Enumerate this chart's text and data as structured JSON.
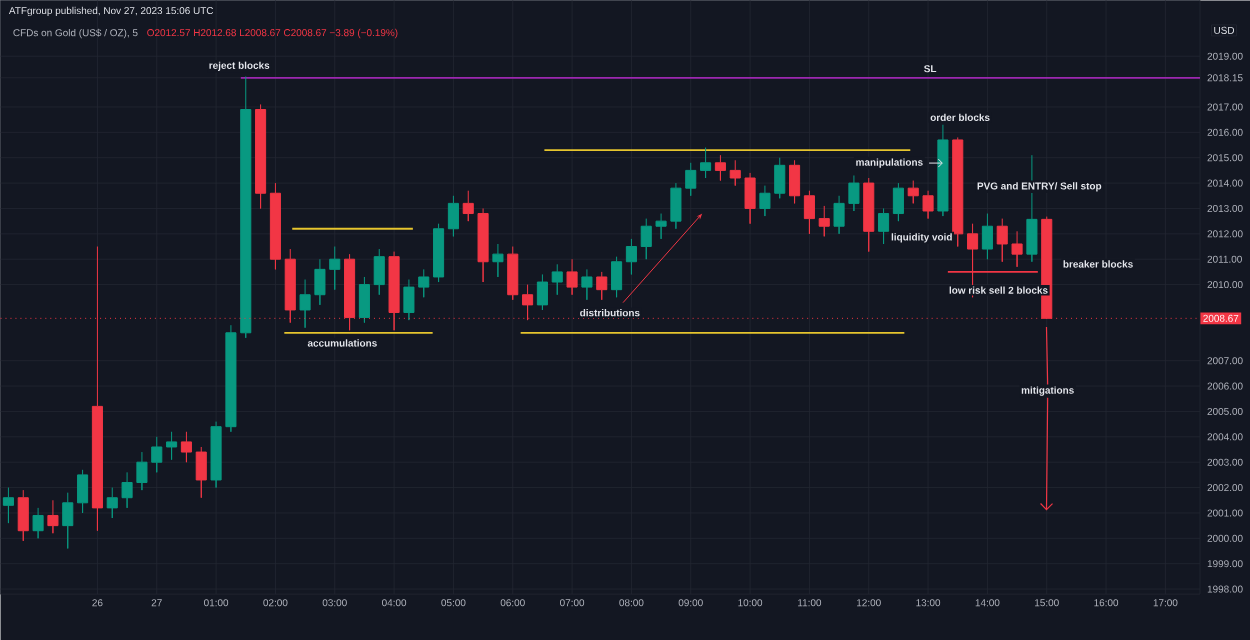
{
  "chart_data": {
    "type": "candlestick",
    "title": "ATFgroup published, Nov 27, 2023 15:06 UTC",
    "subtitle": "CFDs on Gold (US$ / OZ), 5",
    "ylabel": "USD",
    "annotations": [
      "O2012.57 H2012.68 L2008.67 C2008.67 −3.89 (−0.19%)",
      "reject blocks",
      "SL",
      "order blocks",
      "manipulations",
      "PVG and ENTRY/ Sell stop",
      "liquidity void",
      "low risk sell 2 blocks",
      "breaker blocks",
      "mitigations",
      "accumulations",
      "distributions"
    ],
    "x": [
      "2023-11-26T21:30",
      "2023-11-26T21:45",
      "2023-11-26T22:00",
      "2023-11-26T22:15",
      "2023-11-26T22:30",
      "2023-11-26T22:45",
      "2023-11-26T23:00",
      "2023-11-26T23:15",
      "2023-11-26T23:30",
      "2023-11-26T23:45",
      "2023-11-27T00:00",
      "2023-11-27T00:15",
      "2023-11-27T00:30",
      "2023-11-27T00:45",
      "2023-11-27T01:00",
      "2023-11-27T01:15",
      "2023-11-27T01:30",
      "2023-11-27T01:45",
      "2023-11-27T02:00",
      "2023-11-27T02:15",
      "2023-11-27T02:30",
      "2023-11-27T02:45",
      "2023-11-27T03:00",
      "2023-11-27T03:15",
      "2023-11-27T03:30",
      "2023-11-27T03:45",
      "2023-11-27T04:00",
      "2023-11-27T04:15",
      "2023-11-27T04:30",
      "2023-11-27T04:45",
      "2023-11-27T05:00",
      "2023-11-27T05:15",
      "2023-11-27T05:30",
      "2023-11-27T05:45",
      "2023-11-27T06:00",
      "2023-11-27T06:15",
      "2023-11-27T06:30",
      "2023-11-27T06:45",
      "2023-11-27T07:00",
      "2023-11-27T07:15",
      "2023-11-27T07:30",
      "2023-11-27T07:45",
      "2023-11-27T08:00",
      "2023-11-27T08:15",
      "2023-11-27T08:30",
      "2023-11-27T08:45",
      "2023-11-27T09:00",
      "2023-11-27T09:15",
      "2023-11-27T09:30",
      "2023-11-27T09:45",
      "2023-11-27T10:00",
      "2023-11-27T10:15",
      "2023-11-27T10:30",
      "2023-11-27T10:45",
      "2023-11-27T11:00",
      "2023-11-27T11:15",
      "2023-11-27T11:30",
      "2023-11-27T11:45",
      "2023-11-27T12:00",
      "2023-11-27T12:15",
      "2023-11-27T12:30",
      "2023-11-27T12:45",
      "2023-11-27T13:00",
      "2023-11-27T13:15",
      "2023-11-27T13:30",
      "2023-11-27T13:45",
      "2023-11-27T14:00",
      "2023-11-27T14:15",
      "2023-11-27T14:30",
      "2023-11-27T14:45",
      "2023-11-27T15:00"
    ],
    "ohlc": [
      [
        2001.3,
        2002.0,
        2000.6,
        2001.6
      ],
      [
        2001.6,
        2001.9,
        1999.9,
        2000.3
      ],
      [
        2000.3,
        2001.2,
        2000.0,
        2000.9
      ],
      [
        2000.9,
        2001.5,
        2000.2,
        2000.5
      ],
      [
        2000.5,
        2001.8,
        1999.6,
        2001.4
      ],
      [
        2001.4,
        2002.7,
        2001.0,
        2002.5
      ],
      [
        2005.2,
        2011.5,
        2000.3,
        2001.2
      ],
      [
        2001.2,
        2002.0,
        2000.8,
        2001.6
      ],
      [
        2001.6,
        2002.6,
        2001.2,
        2002.2
      ],
      [
        2002.2,
        2003.4,
        2001.9,
        2003.0
      ],
      [
        2003.0,
        2004.0,
        2002.6,
        2003.6
      ],
      [
        2003.6,
        2004.2,
        2003.1,
        2003.8
      ],
      [
        2003.8,
        2004.2,
        2003.0,
        2003.4
      ],
      [
        2003.4,
        2003.6,
        2001.6,
        2002.3
      ],
      [
        2002.3,
        2004.6,
        2002.0,
        2004.4
      ],
      [
        2004.4,
        2008.4,
        2004.2,
        2008.1
      ],
      [
        2008.1,
        2018.2,
        2007.9,
        2016.9
      ],
      [
        2016.9,
        2017.1,
        2013.0,
        2013.6
      ],
      [
        2013.6,
        2014.0,
        2010.6,
        2011.0
      ],
      [
        2011.0,
        2011.4,
        2008.5,
        2009.0
      ],
      [
        2009.0,
        2010.2,
        2008.3,
        2009.6
      ],
      [
        2009.6,
        2011.0,
        2009.2,
        2010.6
      ],
      [
        2010.6,
        2011.5,
        2009.8,
        2011.0
      ],
      [
        2011.0,
        2011.2,
        2008.2,
        2008.7
      ],
      [
        2008.7,
        2010.3,
        2008.5,
        2010.0
      ],
      [
        2010.0,
        2011.4,
        2009.6,
        2011.1
      ],
      [
        2011.1,
        2011.3,
        2008.2,
        2008.9
      ],
      [
        2008.9,
        2010.2,
        2008.6,
        2009.9
      ],
      [
        2009.9,
        2010.6,
        2009.5,
        2010.3
      ],
      [
        2010.3,
        2012.4,
        2010.1,
        2012.2
      ],
      [
        2012.2,
        2013.5,
        2011.9,
        2013.2
      ],
      [
        2013.2,
        2013.7,
        2012.5,
        2012.8
      ],
      [
        2012.8,
        2013.0,
        2010.1,
        2010.9
      ],
      [
        2010.9,
        2011.6,
        2010.3,
        2011.2
      ],
      [
        2011.2,
        2011.5,
        2009.4,
        2009.6
      ],
      [
        2009.6,
        2010.0,
        2008.6,
        2009.2
      ],
      [
        2009.2,
        2010.4,
        2009.0,
        2010.1
      ],
      [
        2010.1,
        2010.8,
        2009.6,
        2010.5
      ],
      [
        2010.5,
        2011.0,
        2009.6,
        2009.9
      ],
      [
        2009.9,
        2010.6,
        2009.4,
        2010.3
      ],
      [
        2010.3,
        2010.5,
        2009.4,
        2009.8
      ],
      [
        2009.8,
        2011.1,
        2009.5,
        2010.9
      ],
      [
        2010.9,
        2011.8,
        2010.4,
        2011.5
      ],
      [
        2011.5,
        2012.6,
        2011.0,
        2012.3
      ],
      [
        2012.3,
        2012.8,
        2011.8,
        2012.5
      ],
      [
        2012.5,
        2014.0,
        2012.2,
        2013.8
      ],
      [
        2013.8,
        2014.8,
        2013.5,
        2014.5
      ],
      [
        2014.5,
        2015.4,
        2014.2,
        2014.8
      ],
      [
        2014.8,
        2015.1,
        2014.1,
        2014.5
      ],
      [
        2014.5,
        2014.9,
        2013.9,
        2014.2
      ],
      [
        2014.2,
        2014.4,
        2012.4,
        2013.0
      ],
      [
        2013.0,
        2013.9,
        2012.7,
        2013.6
      ],
      [
        2013.6,
        2015.0,
        2013.4,
        2014.7
      ],
      [
        2014.7,
        2014.9,
        2013.2,
        2013.5
      ],
      [
        2013.5,
        2013.7,
        2012.0,
        2012.6
      ],
      [
        2012.6,
        2013.1,
        2011.9,
        2012.3
      ],
      [
        2012.3,
        2013.5,
        2012.0,
        2013.2
      ],
      [
        2013.2,
        2014.3,
        2012.9,
        2014.0
      ],
      [
        2014.0,
        2014.2,
        2011.3,
        2012.1
      ],
      [
        2012.1,
        2013.0,
        2011.6,
        2012.8
      ],
      [
        2012.8,
        2014.0,
        2012.5,
        2013.8
      ],
      [
        2013.8,
        2014.1,
        2013.2,
        2013.5
      ],
      [
        2013.5,
        2013.7,
        2012.6,
        2012.9
      ],
      [
        2012.9,
        2016.3,
        2012.7,
        2015.7
      ],
      [
        2015.7,
        2015.8,
        2011.5,
        2012.0
      ],
      [
        2012.0,
        2012.4,
        2009.5,
        2011.4
      ],
      [
        2011.4,
        2012.8,
        2011.0,
        2012.3
      ],
      [
        2012.3,
        2012.6,
        2010.9,
        2011.6
      ],
      [
        2011.6,
        2012.1,
        2010.7,
        2011.2
      ],
      [
        2011.2,
        2015.1,
        2010.9,
        2012.57
      ],
      [
        2012.57,
        2012.68,
        2008.67,
        2008.67
      ]
    ],
    "colors": [
      "#089981",
      "#f23645",
      "#089981",
      "#f23645",
      "#089981",
      "#089981",
      "#f23645",
      "#089981",
      "#089981",
      "#089981",
      "#089981",
      "#089981",
      "#f23645",
      "#f23645",
      "#089981",
      "#089981",
      "#089981",
      "#f23645",
      "#f23645",
      "#f23645",
      "#089981",
      "#089981",
      "#089981",
      "#f23645",
      "#089981",
      "#089981",
      "#f23645",
      "#089981",
      "#089981",
      "#089981",
      "#089981",
      "#f23645",
      "#f23645",
      "#089981",
      "#f23645",
      "#f23645",
      "#089981",
      "#089981",
      "#f23645",
      "#089981",
      "#f23645",
      "#089981",
      "#089981",
      "#089981",
      "#089981",
      "#089981",
      "#089981",
      "#089981",
      "#f23645",
      "#f23645",
      "#f23645",
      "#089981",
      "#089981",
      "#f23645",
      "#f23645",
      "#f23645",
      "#089981",
      "#089981",
      "#f23645",
      "#089981",
      "#089981",
      "#f23645",
      "#f23645",
      "#089981",
      "#f23645",
      "#f23645",
      "#089981",
      "#f23645",
      "#f23645",
      "#089981",
      "#f23645"
    ],
    "series": [
      {
        "type": "line",
        "x": [
          "2023-11-27T02:17",
          "2023-11-27T04:19"
        ],
        "values": [
          2012.2,
          2012.2
        ],
        "color": "#e6c52e"
      },
      {
        "type": "line",
        "x": [
          "2023-11-27T02:09",
          "2023-11-27T04:39"
        ],
        "values": [
          2008.1,
          2008.1
        ],
        "color": "#e6c52e"
      },
      {
        "type": "line",
        "x": [
          "2023-11-27T06:32",
          "2023-11-27T12:42"
        ],
        "values": [
          2015.3,
          2015.3
        ],
        "color": "#e6c52e"
      },
      {
        "type": "line",
        "x": [
          "2023-11-27T06:08",
          "2023-11-27T12:36"
        ],
        "values": [
          2008.1,
          2008.1
        ],
        "color": "#e6c52e"
      },
      {
        "type": "line",
        "x": [
          "2023-11-27T01:25",
          "2023-11-27T17:35"
        ],
        "values": [
          2018.15,
          2018.15
        ],
        "color": "#9c27b0"
      },
      {
        "type": "line",
        "x": [
          "2023-11-27T13:20",
          "2023-11-27T14:51"
        ],
        "values": [
          2010.5,
          2010.5
        ],
        "color": "#f23645"
      }
    ],
    "ref_lines": [
      {
        "axis": "y",
        "value": 2008.67,
        "label": "2008.67",
        "color": "#f23645",
        "line_style": "dotted"
      }
    ],
    "xlim": [
      "2023-11-26T21:22",
      "2023-11-27T17:35"
    ],
    "ylim": [
      1997.8,
      2021.2
    ],
    "xticks": [
      {
        "value": "2023-11-26T23:00",
        "label": "26"
      },
      {
        "value": "2023-11-27T00:00",
        "label": "27"
      },
      {
        "value": "2023-11-27T01:00",
        "label": "01:00"
      },
      {
        "value": "2023-11-27T02:00",
        "label": "02:00"
      },
      {
        "value": "2023-11-27T03:00",
        "label": "03:00"
      },
      {
        "value": "2023-11-27T04:00",
        "label": "04:00"
      },
      {
        "value": "2023-11-27T05:00",
        "label": "05:00"
      },
      {
        "value": "2023-11-27T06:00",
        "label": "06:00"
      },
      {
        "value": "2023-11-27T07:00",
        "label": "07:00"
      },
      {
        "value": "2023-11-27T08:00",
        "label": "08:00"
      },
      {
        "value": "2023-11-27T09:00",
        "label": "09:00"
      },
      {
        "value": "2023-11-27T10:00",
        "label": "10:00"
      },
      {
        "value": "2023-11-27T11:00",
        "label": "11:00"
      },
      {
        "value": "2023-11-27T12:00",
        "label": "12:00"
      },
      {
        "value": "2023-11-27T13:00",
        "label": "13:00"
      },
      {
        "value": "2023-11-27T14:00",
        "label": "14:00"
      },
      {
        "value": "2023-11-27T15:00",
        "label": "15:00"
      },
      {
        "value": "2023-11-27T16:00",
        "label": "16:00"
      },
      {
        "value": "2023-11-27T17:00",
        "label": "17:00"
      }
    ],
    "yticks": [
      {
        "value": 1998,
        "label": "1998.00"
      },
      {
        "value": 1999,
        "label": "1999.00"
      },
      {
        "value": 2000,
        "label": "2000.00"
      },
      {
        "value": 2001,
        "label": "2001.00"
      },
      {
        "value": 2002,
        "label": "2002.00"
      },
      {
        "value": 2003,
        "label": "2003.00"
      },
      {
        "value": 2004,
        "label": "2004.00"
      },
      {
        "value": 2005,
        "label": "2005.00"
      },
      {
        "value": 2006,
        "label": "2006.00"
      },
      {
        "value": 2007,
        "label": "2007.00"
      },
      {
        "value": 2010,
        "label": "2010.00"
      },
      {
        "value": 2011,
        "label": "2011.00"
      },
      {
        "value": 2012,
        "label": "2012.00"
      },
      {
        "value": 2013,
        "label": "2013.00"
      },
      {
        "value": 2014,
        "label": "2014.00"
      },
      {
        "value": 2015,
        "label": "2015.00"
      },
      {
        "value": 2016,
        "label": "2016.00"
      },
      {
        "value": 2017,
        "label": "2017.00"
      },
      {
        "value": 2018.15,
        "label": "2018.15"
      },
      {
        "value": 2019,
        "label": "2019.00"
      }
    ],
    "grid": true
  }
}
